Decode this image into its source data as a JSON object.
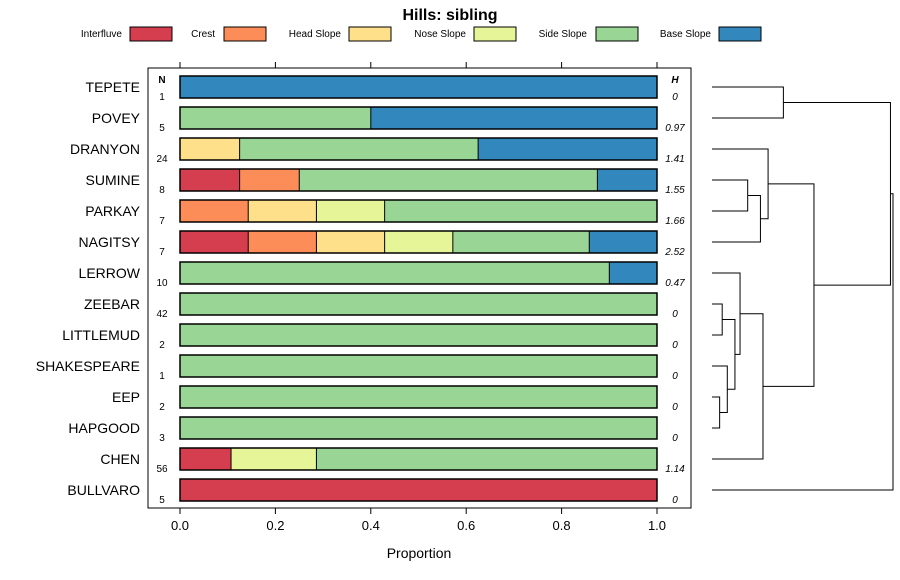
{
  "chart_data": {
    "type": "bar",
    "title": "Hills: sibling",
    "xlabel": "Proportion",
    "ylabel": "",
    "xlim": [
      0,
      1
    ],
    "x_ticks": [
      "0.0",
      "0.2",
      "0.4",
      "0.6",
      "0.8",
      "1.0"
    ],
    "n_header": "N",
    "h_header": "H",
    "legend_position": "top",
    "legend": [
      {
        "name": "Interfluve",
        "color": "#d53e4f"
      },
      {
        "name": "Crest",
        "color": "#fc8d59"
      },
      {
        "name": "Head Slope",
        "color": "#fee08b"
      },
      {
        "name": "Nose Slope",
        "color": "#e6f598"
      },
      {
        "name": "Side Slope",
        "color": "#99d594"
      },
      {
        "name": "Base Slope",
        "color": "#3288bd"
      }
    ],
    "rows": [
      {
        "name": "TEPETE",
        "n": "1",
        "h": "0",
        "values": [
          0,
          0,
          0,
          0,
          0,
          1
        ]
      },
      {
        "name": "POVEY",
        "n": "5",
        "h": "0.97",
        "values": [
          0,
          0,
          0,
          0,
          0.4,
          0.6
        ]
      },
      {
        "name": "DRANYON",
        "n": "24",
        "h": "1.41",
        "values": [
          0,
          0,
          0.125,
          0,
          0.5,
          0.375
        ]
      },
      {
        "name": "SUMINE",
        "n": "8",
        "h": "1.55",
        "values": [
          0.125,
          0.125,
          0,
          0,
          0.625,
          0.125
        ]
      },
      {
        "name": "PARKAY",
        "n": "7",
        "h": "1.66",
        "values": [
          0,
          0.143,
          0.143,
          0.143,
          0.571,
          0
        ]
      },
      {
        "name": "NAGITSY",
        "n": "7",
        "h": "2.52",
        "values": [
          0.143,
          0.143,
          0.143,
          0.143,
          0.286,
          0.143
        ]
      },
      {
        "name": "LERROW",
        "n": "10",
        "h": "0.47",
        "values": [
          0,
          0,
          0,
          0,
          0.9,
          0.1
        ]
      },
      {
        "name": "ZEEBAR",
        "n": "42",
        "h": "0",
        "values": [
          0,
          0,
          0,
          0,
          1,
          0
        ]
      },
      {
        "name": "LITTLEMUD",
        "n": "2",
        "h": "0",
        "values": [
          0,
          0,
          0,
          0,
          1,
          0
        ]
      },
      {
        "name": "SHAKESPEARE",
        "n": "1",
        "h": "0",
        "values": [
          0,
          0,
          0,
          0,
          1,
          0
        ]
      },
      {
        "name": "EEP",
        "n": "2",
        "h": "0",
        "values": [
          0,
          0,
          0,
          0,
          1,
          0
        ]
      },
      {
        "name": "HAPGOOD",
        "n": "3",
        "h": "0",
        "values": [
          0,
          0,
          0,
          0,
          1,
          0
        ]
      },
      {
        "name": "CHEN",
        "n": "56",
        "h": "1.14",
        "values": [
          0.107,
          0,
          0,
          0.179,
          0.714,
          0
        ]
      },
      {
        "name": "BULLVARO",
        "n": "5",
        "h": "0",
        "values": [
          1,
          0,
          0,
          0,
          0,
          0
        ]
      }
    ],
    "dendrogram": {
      "merges": [
        {
          "a": [
            "SUMINE"
          ],
          "b": [
            "PARKAY"
          ],
          "height": 0.7
        },
        {
          "a": [
            "SUMINE",
            "PARKAY"
          ],
          "b": [
            "NAGITSY"
          ],
          "height": 0.95
        },
        {
          "a": [
            "DRANYON"
          ],
          "b": [
            "SUMINE",
            "PARKAY",
            "NAGITSY"
          ],
          "height": 1.1
        },
        {
          "a": [
            "TEPETE"
          ],
          "b": [
            "POVEY"
          ],
          "height": 1.4
        },
        {
          "a": [
            "EEP"
          ],
          "b": [
            "HAPGOOD"
          ],
          "height": 0.15
        },
        {
          "a": [
            "SHAKESPEARE"
          ],
          "b": [
            "EEP",
            "HAPGOOD"
          ],
          "height": 0.3
        },
        {
          "a": [
            "ZEEBAR"
          ],
          "b": [
            "LITTLEMUD"
          ],
          "height": 0.2
        },
        {
          "a": [
            "ZEEBAR",
            "LITTLEMUD"
          ],
          "b": [
            "SHAKESPEARE",
            "EEP",
            "HAPGOOD"
          ],
          "height": 0.45
        },
        {
          "a": [
            "LERROW"
          ],
          "b": [
            "ZEEBAR",
            "LITTLEMUD",
            "SHAKESPEARE",
            "EEP",
            "HAPGOOD"
          ],
          "height": 0.55
        },
        {
          "a": [
            "LERROW",
            "ZEEBAR",
            "LITTLEMUD",
            "SHAKESPEARE",
            "EEP",
            "HAPGOOD"
          ],
          "b": [
            "CHEN"
          ],
          "height": 1.0
        },
        {
          "a": [
            "DRANYON",
            "SUMINE",
            "PARKAY",
            "NAGITSY"
          ],
          "b": [
            "LERROW",
            "ZEEBAR",
            "LITTLEMUD",
            "SHAKESPEARE",
            "EEP",
            "HAPGOOD",
            "CHEN"
          ],
          "height": 2.0
        },
        {
          "a": [
            "TEPETE",
            "POVEY"
          ],
          "b": [
            "DRANYON",
            "SUMINE",
            "PARKAY",
            "NAGITSY",
            "LERROW",
            "ZEEBAR",
            "LITTLEMUD",
            "SHAKESPEARE",
            "EEP",
            "HAPGOOD",
            "CHEN"
          ],
          "height": 3.5
        },
        {
          "a": [
            "TEPETE",
            "POVEY",
            "DRANYON",
            "SUMINE",
            "PARKAY",
            "NAGITSY",
            "LERROW",
            "ZEEBAR",
            "LITTLEMUD",
            "SHAKESPEARE",
            "EEP",
            "HAPGOOD",
            "CHEN"
          ],
          "b": [
            "BULLVARO"
          ],
          "height": 3.55
        }
      ]
    }
  }
}
